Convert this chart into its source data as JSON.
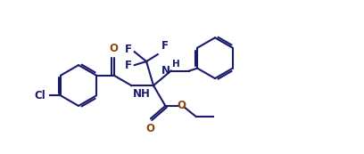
{
  "bg_color": "#ffffff",
  "bond_color": "#1a1a6e",
  "atom_color_O": "#8b4513",
  "atom_color_N": "#1a1a6e",
  "atom_color_F": "#1a1a6e",
  "atom_color_Cl": "#1a1a6e",
  "figsize": [
    4.08,
    1.73
  ],
  "dpi": 100,
  "xlim": [
    0,
    10.5
  ],
  "ylim": [
    -2.2,
    3.2
  ]
}
